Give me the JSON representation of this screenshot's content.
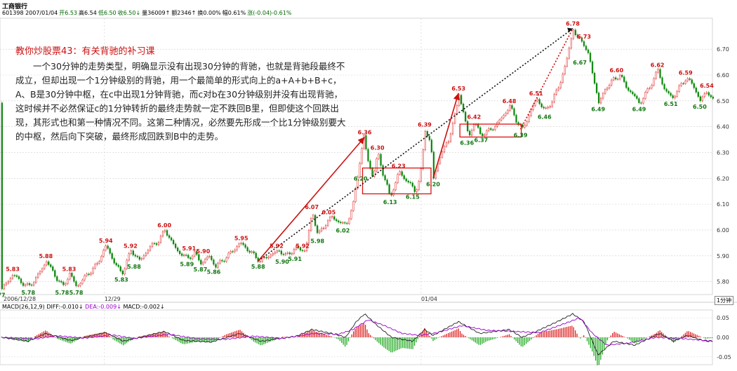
{
  "header": {
    "stock_name": "工商银行",
    "info_line": [
      {
        "text": "601398 2007/01/04",
        "color": "#000000"
      },
      {
        "text": "开6.53",
        "color": "#006600"
      },
      {
        "text": "高6.54",
        "color": "#000000"
      },
      {
        "text": "低6.50",
        "color": "#006600"
      },
      {
        "text": "收6.50↓",
        "color": "#006600"
      },
      {
        "text": "量36009↑",
        "color": "#000000"
      },
      {
        "text": "额2346↑",
        "color": "#000000"
      },
      {
        "text": "换0.00%",
        "color": "#000000"
      },
      {
        "text": "幅0.61%",
        "color": "#000000"
      },
      {
        "text": "涨(-0.04)-0.61%",
        "color": "#006600"
      }
    ]
  },
  "annotation": {
    "title": "教你炒股票43：有关背驰的补习课",
    "body": "一个30分钟的走势类型，明确显示没有出现30分钟的背驰，也就是背驰段最终不成立，但却出现一个1分钟级别的背驰，用一个最简单的形式向上的a+A+b+B+c，A、B是30分钟中枢，在c中出现1分钟背驰，而c对b在30分钟级别并没有出现背驰，这时候并不必然保证c的1分钟转折的最终走势就一定不跌回B里，但即使这个回跌出现，其形式也和第一种情况不同。这第二种情况，必然要先形成一个比1分钟级别要大的中枢，然后向下突破，最终形成回跌到B中的走势。"
  },
  "macd_header": {
    "label": "MACD(26,12,9)",
    "diff": "DIFF:-0.010↓",
    "dea": "DEA:-0.009↓",
    "macd": "MACD:-0.002↓",
    "colors": {
      "label": "#000000",
      "diff": "#000000",
      "dea": "#9900cc",
      "macd": "#000000"
    }
  },
  "period_label": "1分钟",
  "chart_data": [
    {
      "type": "line",
      "name": "price",
      "ylim": [
        5.75,
        6.82
      ],
      "yticks": [
        "5.80",
        "5.90",
        "6.00",
        "6.10",
        "6.20",
        "6.30",
        "6.40",
        "6.50",
        "6.60",
        "6.70"
      ],
      "xlim": [
        0,
        1010
      ],
      "x_date_labels": [
        {
          "x": 5,
          "text": "2006/12/28"
        },
        {
          "x": 148,
          "text": "12/29"
        },
        {
          "x": 597,
          "text": "01/04"
        }
      ],
      "anchors": [
        [
          2,
          5.77
        ],
        [
          10,
          5.8
        ],
        [
          18,
          5.83
        ],
        [
          28,
          5.8
        ],
        [
          40,
          5.78
        ],
        [
          52,
          5.82
        ],
        [
          65,
          5.88
        ],
        [
          78,
          5.82
        ],
        [
          88,
          5.78
        ],
        [
          98,
          5.83
        ],
        [
          108,
          5.78
        ],
        [
          120,
          5.82
        ],
        [
          135,
          5.86
        ],
        [
          150,
          5.94
        ],
        [
          160,
          5.88
        ],
        [
          172,
          5.83
        ],
        [
          185,
          5.92
        ],
        [
          198,
          5.88
        ],
        [
          210,
          5.93
        ],
        [
          225,
          5.96
        ],
        [
          233,
          6.0
        ],
        [
          250,
          5.92
        ],
        [
          265,
          5.89
        ],
        [
          275,
          5.91
        ],
        [
          285,
          5.87
        ],
        [
          295,
          5.9
        ],
        [
          305,
          5.86
        ],
        [
          322,
          5.9
        ],
        [
          340,
          5.95
        ],
        [
          352,
          5.92
        ],
        [
          368,
          5.88
        ],
        [
          380,
          5.9
        ],
        [
          395,
          5.92
        ],
        [
          405,
          5.9
        ],
        [
          418,
          5.93
        ],
        [
          432,
          5.92
        ],
        [
          442,
          6.07
        ],
        [
          450,
          5.98
        ],
        [
          462,
          6.03
        ],
        [
          470,
          6.05
        ],
        [
          480,
          6.03
        ],
        [
          490,
          6.02
        ],
        [
          500,
          6.1
        ],
        [
          508,
          6.25
        ],
        [
          515,
          6.36
        ],
        [
          520,
          6.28
        ],
        [
          528,
          6.2
        ],
        [
          535,
          6.3
        ],
        [
          542,
          6.22
        ],
        [
          552,
          6.13
        ],
        [
          560,
          6.18
        ],
        [
          565,
          6.23
        ],
        [
          572,
          6.2
        ],
        [
          580,
          6.18
        ],
        [
          588,
          6.15
        ],
        [
          595,
          6.2
        ],
        [
          602,
          6.39
        ],
        [
          610,
          6.33
        ],
        [
          614,
          6.2
        ],
        [
          622,
          6.28
        ],
        [
          635,
          6.35
        ],
        [
          645,
          6.45
        ],
        [
          650,
          6.53
        ],
        [
          657,
          6.44
        ],
        [
          664,
          6.36
        ],
        [
          672,
          6.42
        ],
        [
          680,
          6.37
        ],
        [
          690,
          6.38
        ],
        [
          700,
          6.4
        ],
        [
          712,
          6.44
        ],
        [
          722,
          6.48
        ],
        [
          732,
          6.42
        ],
        [
          740,
          6.39
        ],
        [
          750,
          6.45
        ],
        [
          760,
          6.51
        ],
        [
          772,
          6.46
        ],
        [
          782,
          6.5
        ],
        [
          792,
          6.56
        ],
        [
          802,
          6.65
        ],
        [
          812,
          6.78
        ],
        [
          818,
          6.74
        ],
        [
          826,
          6.73
        ],
        [
          834,
          6.67
        ],
        [
          840,
          6.6
        ],
        [
          848,
          6.49
        ],
        [
          858,
          6.55
        ],
        [
          868,
          6.58
        ],
        [
          878,
          6.6
        ],
        [
          888,
          6.55
        ],
        [
          898,
          6.52
        ],
        [
          906,
          6.49
        ],
        [
          915,
          6.53
        ],
        [
          925,
          6.58
        ],
        [
          932,
          6.62
        ],
        [
          940,
          6.55
        ],
        [
          952,
          6.51
        ],
        [
          962,
          6.55
        ],
        [
          972,
          6.59
        ],
        [
          982,
          6.56
        ],
        [
          992,
          6.5
        ],
        [
          1002,
          6.54
        ],
        [
          1010,
          6.5
        ]
      ],
      "labels": [
        {
          "x": 2,
          "y": 5.77,
          "text": "77",
          "pos": "below"
        },
        {
          "x": 18,
          "y": 5.83,
          "text": "5.83",
          "pos": "above"
        },
        {
          "x": 40,
          "y": 5.78,
          "text": "5.78",
          "pos": "below"
        },
        {
          "x": 65,
          "y": 5.88,
          "text": "5.88",
          "pos": "above"
        },
        {
          "x": 88,
          "y": 5.78,
          "text": "5.78",
          "pos": "below"
        },
        {
          "x": 98,
          "y": 5.83,
          "text": "5.83",
          "pos": "above"
        },
        {
          "x": 108,
          "y": 5.78,
          "text": "5.78",
          "pos": "below"
        },
        {
          "x": 150,
          "y": 5.94,
          "text": "5.94",
          "pos": "above"
        },
        {
          "x": 172,
          "y": 5.83,
          "text": "5.83",
          "pos": "below"
        },
        {
          "x": 185,
          "y": 5.92,
          "text": "5.92",
          "pos": "above"
        },
        {
          "x": 190,
          "y": 5.88,
          "text": "5.88",
          "pos": "below"
        },
        {
          "x": 233,
          "y": 6.0,
          "text": "6.00",
          "pos": "above"
        },
        {
          "x": 265,
          "y": 5.89,
          "text": "5.89",
          "pos": "below"
        },
        {
          "x": 268,
          "y": 5.91,
          "text": "5.91",
          "pos": "above"
        },
        {
          "x": 288,
          "y": 5.9,
          "text": "5.90",
          "pos": "above"
        },
        {
          "x": 284,
          "y": 5.87,
          "text": "5.87",
          "pos": "below"
        },
        {
          "x": 303,
          "y": 5.86,
          "text": "5.86",
          "pos": "below"
        },
        {
          "x": 342,
          "y": 5.95,
          "text": "5.95",
          "pos": "above"
        },
        {
          "x": 366,
          "y": 5.88,
          "text": "5.88",
          "pos": "below"
        },
        {
          "x": 392,
          "y": 5.92,
          "text": "5.92",
          "pos": "above"
        },
        {
          "x": 400,
          "y": 5.9,
          "text": "5.90",
          "pos": "below"
        },
        {
          "x": 418,
          "y": 5.91,
          "text": "5.91",
          "pos": "below"
        },
        {
          "x": 429,
          "y": 5.92,
          "text": "5.92",
          "pos": "above"
        },
        {
          "x": 442,
          "y": 6.07,
          "text": "6.07",
          "pos": "above"
        },
        {
          "x": 450,
          "y": 5.98,
          "text": "5.98",
          "pos": "below"
        },
        {
          "x": 466,
          "y": 6.05,
          "text": "6.05",
          "pos": "above"
        },
        {
          "x": 486,
          "y": 6.02,
          "text": "6.02",
          "pos": "below"
        },
        {
          "x": 517,
          "y": 6.36,
          "text": "6.36",
          "pos": "above"
        },
        {
          "x": 535,
          "y": 6.3,
          "text": "6.30",
          "pos": "above"
        },
        {
          "x": 524,
          "y": 6.2,
          "text": "6.20",
          "pos": "left"
        },
        {
          "x": 565,
          "y": 6.23,
          "text": "6.23",
          "pos": "above"
        },
        {
          "x": 553,
          "y": 6.13,
          "text": "6.13",
          "pos": "below"
        },
        {
          "x": 585,
          "y": 6.15,
          "text": "6.15",
          "pos": "below"
        },
        {
          "x": 602,
          "y": 6.39,
          "text": "6.39",
          "pos": "above"
        },
        {
          "x": 614,
          "y": 6.2,
          "text": "6.20",
          "pos": "below"
        },
        {
          "x": 650,
          "y": 6.53,
          "text": "6.53",
          "pos": "above"
        },
        {
          "x": 672,
          "y": 6.42,
          "text": "6.42",
          "pos": "above"
        },
        {
          "x": 662,
          "y": 6.36,
          "text": "6.36",
          "pos": "below"
        },
        {
          "x": 682,
          "y": 6.37,
          "text": "6.37",
          "pos": "below"
        },
        {
          "x": 722,
          "y": 6.48,
          "text": "6.48",
          "pos": "above"
        },
        {
          "x": 738,
          "y": 6.39,
          "text": "6.39",
          "pos": "below"
        },
        {
          "x": 760,
          "y": 6.51,
          "text": "6.51",
          "pos": "above"
        },
        {
          "x": 772,
          "y": 6.46,
          "text": "6.46",
          "pos": "below"
        },
        {
          "x": 812,
          "y": 6.78,
          "text": "6.78",
          "pos": "above"
        },
        {
          "x": 828,
          "y": 6.73,
          "text": "6.73",
          "pos": "above"
        },
        {
          "x": 822,
          "y": 6.67,
          "text": "6.67",
          "pos": "below"
        },
        {
          "x": 848,
          "y": 6.49,
          "text": "6.49",
          "pos": "below"
        },
        {
          "x": 874,
          "y": 6.6,
          "text": "6.60",
          "pos": "above"
        },
        {
          "x": 906,
          "y": 6.49,
          "text": "6.49",
          "pos": "below"
        },
        {
          "x": 932,
          "y": 6.62,
          "text": "6.62",
          "pos": "above"
        },
        {
          "x": 951,
          "y": 6.51,
          "text": "6.51",
          "pos": "below"
        },
        {
          "x": 972,
          "y": 6.59,
          "text": "6.59",
          "pos": "above"
        },
        {
          "x": 992,
          "y": 6.5,
          "text": "6.50",
          "pos": "below"
        },
        {
          "x": 1002,
          "y": 6.54,
          "text": "6.54",
          "pos": "above"
        }
      ],
      "boxes": [
        {
          "x1": 514,
          "x2": 611,
          "y1": 6.14,
          "y2": 6.24
        },
        {
          "x1": 652,
          "x2": 739,
          "y1": 6.36,
          "y2": 6.41
        }
      ],
      "red_arrows": [
        {
          "x1": 366,
          "y1": 5.88,
          "x2": 517,
          "y2": 6.36
        },
        {
          "x1": 614,
          "y1": 6.2,
          "x2": 650,
          "y2": 6.53
        }
      ],
      "dotted_lines": [
        {
          "x1": 366,
          "y1": 5.88,
          "x2": 812,
          "y2": 6.78,
          "color": "#111111"
        },
        {
          "x1": 738,
          "y1": 6.39,
          "x2": 812,
          "y2": 6.78,
          "color": "#cc0000"
        }
      ],
      "up_color": "#dd2222",
      "down_color": "#118811"
    },
    {
      "type": "bar",
      "name": "macd",
      "ylim": [
        -0.07,
        0.07
      ],
      "yticks": [
        "0.05",
        "0.00",
        "-0.05"
      ],
      "series": [
        {
          "name": "DIFF",
          "color": "#222222"
        },
        {
          "name": "DEA",
          "color": "#9900cc"
        }
      ],
      "diff_anchors": [
        [
          2,
          0.0
        ],
        [
          40,
          -0.01
        ],
        [
          65,
          0.01
        ],
        [
          100,
          -0.008
        ],
        [
          150,
          0.012
        ],
        [
          175,
          -0.01
        ],
        [
          233,
          0.015
        ],
        [
          260,
          -0.008
        ],
        [
          300,
          -0.012
        ],
        [
          340,
          0.01
        ],
        [
          370,
          -0.01
        ],
        [
          420,
          0.003
        ],
        [
          442,
          0.02
        ],
        [
          470,
          0.01
        ],
        [
          490,
          0.0
        ],
        [
          505,
          0.04
        ],
        [
          517,
          0.06
        ],
        [
          535,
          0.03
        ],
        [
          555,
          0.0
        ],
        [
          585,
          -0.01
        ],
        [
          602,
          0.02
        ],
        [
          614,
          0.005
        ],
        [
          650,
          0.04
        ],
        [
          680,
          0.01
        ],
        [
          722,
          0.02
        ],
        [
          740,
          0.0
        ],
        [
          760,
          0.015
        ],
        [
          790,
          0.04
        ],
        [
          812,
          0.06
        ],
        [
          828,
          0.04
        ],
        [
          848,
          -0.045
        ],
        [
          870,
          -0.01
        ],
        [
          900,
          -0.02
        ],
        [
          935,
          0.01
        ],
        [
          955,
          -0.01
        ],
        [
          975,
          0.005
        ],
        [
          1000,
          -0.01
        ],
        [
          1010,
          -0.01
        ]
      ],
      "dea_anchors": [
        [
          2,
          0.0
        ],
        [
          50,
          -0.004
        ],
        [
          80,
          0.004
        ],
        [
          120,
          -0.002
        ],
        [
          160,
          0.006
        ],
        [
          190,
          -0.003
        ],
        [
          240,
          0.008
        ],
        [
          280,
          -0.004
        ],
        [
          320,
          -0.005
        ],
        [
          360,
          0.003
        ],
        [
          400,
          -0.003
        ],
        [
          445,
          0.01
        ],
        [
          480,
          0.008
        ],
        [
          500,
          0.02
        ],
        [
          522,
          0.045
        ],
        [
          545,
          0.03
        ],
        [
          570,
          0.01
        ],
        [
          595,
          0.005
        ],
        [
          620,
          0.012
        ],
        [
          655,
          0.03
        ],
        [
          690,
          0.018
        ],
        [
          730,
          0.015
        ],
        [
          765,
          0.012
        ],
        [
          800,
          0.035
        ],
        [
          822,
          0.05
        ],
        [
          840,
          0.01
        ],
        [
          860,
          -0.02
        ],
        [
          890,
          -0.015
        ],
        [
          930,
          0.0
        ],
        [
          965,
          -0.003
        ],
        [
          1000,
          -0.008
        ],
        [
          1010,
          -0.009
        ]
      ]
    }
  ]
}
